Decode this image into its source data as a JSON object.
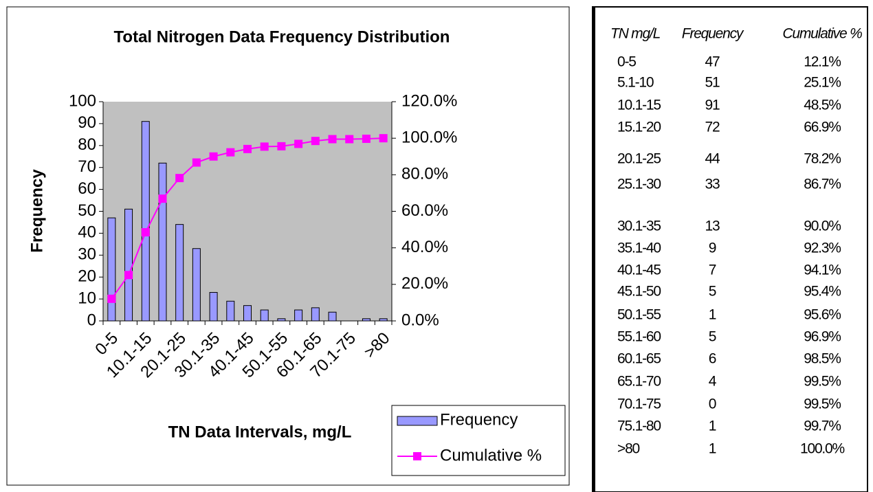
{
  "chart_data": {
    "type": "bar",
    "title": "Total Nitrogen Data Frequency Distribution",
    "y_label": "Frequency",
    "x_label": "TN Data Intervals, mg/L",
    "categories": [
      "0-5",
      null,
      "10.1-15",
      null,
      "20.1-25",
      null,
      "30.1-35",
      null,
      "40.1-45",
      null,
      "50.1-55",
      null,
      "60.1-65",
      null,
      "70.1-75",
      null,
      ">80"
    ],
    "series": [
      {
        "name": "Frequency",
        "type": "bar",
        "color": "#9999ff",
        "values": [
          47,
          51,
          91,
          72,
          44,
          33,
          13,
          9,
          7,
          5,
          1,
          5,
          6,
          4,
          0,
          1,
          1
        ]
      },
      {
        "name": "Cumulative %",
        "type": "line",
        "axis": "y2",
        "color": "#ff00ff",
        "values": [
          12.1,
          25.1,
          48.5,
          66.9,
          78.2,
          86.7,
          90.0,
          92.3,
          94.1,
          95.4,
          95.6,
          96.9,
          98.5,
          99.5,
          99.5,
          99.7,
          100.0
        ]
      }
    ],
    "ylim": [
      0,
      100
    ],
    "yticks": [
      0,
      10,
      20,
      30,
      40,
      50,
      60,
      70,
      80,
      90,
      100
    ],
    "y2lim": [
      0,
      120
    ],
    "y2ticks": [
      {
        "value": 0,
        "label": "0.0%"
      },
      {
        "value": 20,
        "label": "20.0%"
      },
      {
        "value": 40,
        "label": "40.0%"
      },
      {
        "value": 60,
        "label": "60.0%"
      },
      {
        "value": 80,
        "label": "80.0%"
      },
      {
        "value": 100,
        "label": "100.0%"
      },
      {
        "value": 120,
        "label": "120.0%"
      }
    ],
    "legend": "bottom-right",
    "background": "#c0c0c0"
  },
  "table": {
    "header": [
      "TN mg/L",
      "Frequency",
      "Cumulative %"
    ],
    "rows": [
      [
        "0-5",
        47,
        "12.1%"
      ],
      [
        "5.1-10",
        51,
        "25.1%"
      ],
      [
        "10.1-15",
        91,
        "48.5%"
      ],
      [
        "15.1-20",
        72,
        "66.9%"
      ],
      [
        "20.1-25",
        44,
        "78.2%"
      ],
      [
        "25.1-30",
        33,
        "86.7%"
      ],
      [
        "30.1-35",
        13,
        "90.0%"
      ],
      [
        "35.1-40",
        9,
        "92.3%"
      ],
      [
        "40.1-45",
        7,
        "94.1%"
      ],
      [
        "45.1-50",
        5,
        "95.4%"
      ],
      [
        "50.1-55",
        1,
        "95.6%"
      ],
      [
        "55.1-60",
        5,
        "96.9%"
      ],
      [
        "60.1-65",
        6,
        "98.5%"
      ],
      [
        "65.1-70",
        4,
        "99.5%"
      ],
      [
        "70.1-75",
        0,
        "99.5%"
      ],
      [
        "75.1-80",
        1,
        "99.7%"
      ],
      [
        ">80",
        1,
        "100.0%"
      ]
    ]
  }
}
